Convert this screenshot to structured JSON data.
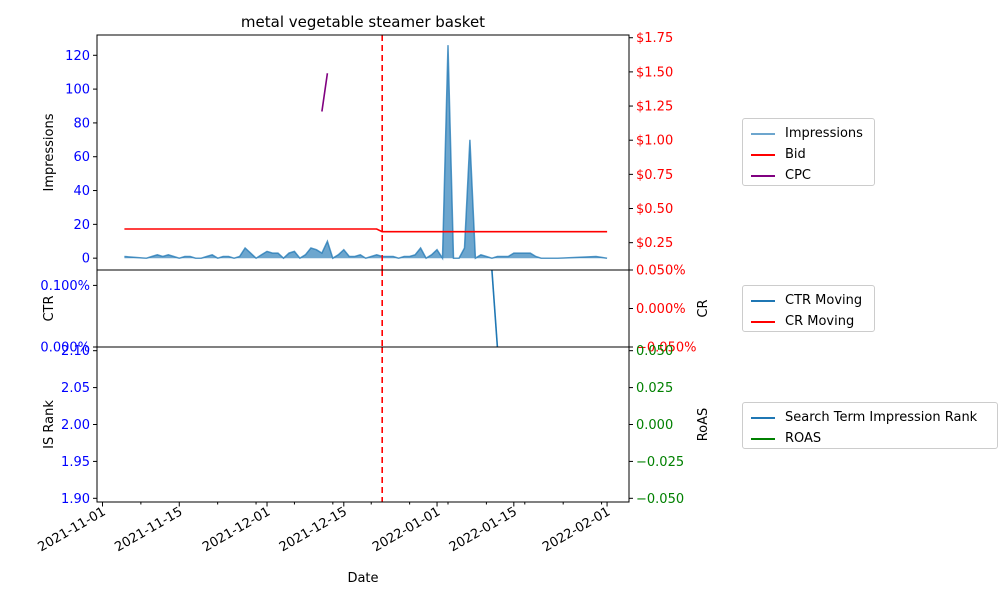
{
  "title": "metal vegetable steamer basket",
  "xlabel": "Date",
  "chart_data": [
    {
      "type": "area",
      "panel": "top",
      "ylabel": "Impressions",
      "ylim": [
        -7,
        132
      ],
      "yticks": [
        0,
        20,
        40,
        60,
        80,
        100,
        120
      ],
      "y2lim": [
        0.05,
        1.77
      ],
      "y2ticks": [
        0.25,
        0.5,
        0.75,
        1.0,
        1.25,
        1.5,
        1.75
      ],
      "y2tick_labels": [
        "$0.25",
        "$0.50",
        "$0.75",
        "$1.00",
        "$1.25",
        "$1.50",
        "$1.75"
      ],
      "series": [
        {
          "name": "Impressions",
          "axis": "left",
          "style": "area",
          "color": "#1f77b4",
          "x": [
            "2021-11-05",
            "2021-11-09",
            "2021-11-10",
            "2021-11-11",
            "2021-11-12",
            "2021-11-13",
            "2021-11-14",
            "2021-11-15",
            "2021-11-16",
            "2021-11-17",
            "2021-11-18",
            "2021-11-19",
            "2021-11-20",
            "2021-11-21",
            "2021-11-22",
            "2021-11-23",
            "2021-11-24",
            "2021-11-25",
            "2021-11-26",
            "2021-11-27",
            "2021-11-28",
            "2021-11-29",
            "2021-11-30",
            "2021-12-01",
            "2021-12-02",
            "2021-12-03",
            "2021-12-04",
            "2021-12-05",
            "2021-12-06",
            "2021-12-07",
            "2021-12-08",
            "2021-12-09",
            "2021-12-10",
            "2021-12-11",
            "2021-12-12",
            "2021-12-13",
            "2021-12-14",
            "2021-12-15",
            "2021-12-16",
            "2021-12-17",
            "2021-12-18",
            "2021-12-19",
            "2021-12-20",
            "2021-12-21",
            "2021-12-22",
            "2021-12-23",
            "2021-12-24",
            "2021-12-25",
            "2021-12-26",
            "2021-12-27",
            "2021-12-28",
            "2021-12-29",
            "2021-12-30",
            "2021-12-31",
            "2022-01-01",
            "2022-01-02",
            "2022-01-03",
            "2022-01-04",
            "2022-01-05",
            "2022-01-06",
            "2022-01-07",
            "2022-01-08",
            "2022-01-09",
            "2022-01-10",
            "2022-01-11",
            "2022-01-12",
            "2022-01-13",
            "2022-01-14",
            "2022-01-15",
            "2022-01-16",
            "2022-01-17",
            "2022-01-18",
            "2022-01-19",
            "2022-01-20",
            "2022-01-21",
            "2022-01-22",
            "2022-01-23",
            "2022-01-30",
            "2022-02-01"
          ],
          "values": [
            1,
            0,
            1,
            2,
            1,
            2,
            1,
            0,
            1,
            1,
            0,
            0,
            1,
            2,
            0,
            1,
            1,
            0,
            1,
            6,
            3,
            0,
            2,
            4,
            3,
            3,
            0,
            3,
            4,
            0,
            2,
            6,
            5,
            3,
            10,
            0,
            2,
            5,
            1,
            1,
            2,
            0,
            1,
            2,
            1,
            1,
            1,
            0,
            1,
            1,
            2,
            6,
            0,
            2,
            5,
            0,
            126,
            0,
            0,
            6,
            70,
            0,
            2,
            1,
            0,
            1,
            1,
            1,
            3,
            3,
            3,
            3,
            1,
            0,
            0,
            0,
            0,
            1,
            0
          ]
        },
        {
          "name": "Bid",
          "axis": "right",
          "style": "line",
          "color": "#ff0000",
          "x": [
            "2021-11-05",
            "2021-12-21",
            "2021-12-22",
            "2022-02-01"
          ],
          "values": [
            0.35,
            0.35,
            0.33,
            0.33
          ]
        },
        {
          "name": "CPC",
          "axis": "right",
          "style": "line",
          "color": "#800080",
          "x": [
            "2021-12-11",
            "2021-12-12"
          ],
          "values": [
            1.21,
            1.49
          ]
        }
      ],
      "vline": {
        "x": "2021-12-22",
        "color": "#ff0000",
        "style": "dashed"
      }
    },
    {
      "type": "line",
      "panel": "middle",
      "ylabel": "CTR",
      "y2label": "CR",
      "ylim": [
        0.0,
        0.00125
      ],
      "yticks": [
        0.0,
        0.001
      ],
      "ytick_labels": [
        "0.000%",
        "0.100%"
      ],
      "y2lim": [
        -0.0005,
        0.0005
      ],
      "y2ticks": [
        -0.0005,
        0.0,
        0.0005
      ],
      "y2tick_labels": [
        "−0.050%",
        "0.000%",
        "0.050%"
      ],
      "series": [
        {
          "name": "CTR Moving",
          "axis": "left",
          "color": "#1f77b4",
          "x": [
            "2022-01-11",
            "2022-01-12"
          ],
          "values": [
            0.00125,
            0.0
          ]
        },
        {
          "name": "CR Moving",
          "axis": "right",
          "color": "#ff0000",
          "x": [],
          "values": []
        }
      ],
      "vline": {
        "x": "2021-12-22",
        "color": "#ff0000",
        "style": "dashed"
      }
    },
    {
      "type": "line",
      "panel": "bottom",
      "ylabel": "IS Rank",
      "y2label": "RoAS",
      "ylim": [
        1.895,
        2.105
      ],
      "yticks": [
        1.9,
        1.95,
        2.0,
        2.05,
        2.1
      ],
      "ytick_labels": [
        "1.90",
        "1.95",
        "2.00",
        "2.05",
        "2.10"
      ],
      "y2lim": [
        -0.0525,
        0.0525
      ],
      "y2ticks": [
        -0.05,
        -0.025,
        0.0,
        0.025,
        0.05
      ],
      "y2tick_labels": [
        "−0.050",
        "−0.025",
        "0.000",
        "0.025",
        "0.050"
      ],
      "series": [
        {
          "name": "Search Term Impression Rank",
          "axis": "left",
          "color": "#1f77b4",
          "x": [],
          "values": []
        },
        {
          "name": "ROAS",
          "axis": "right",
          "color": "#008000",
          "x": [],
          "values": []
        }
      ],
      "vline": {
        "x": "2021-12-22",
        "color": "#ff0000",
        "style": "dashed"
      }
    }
  ],
  "xaxis": {
    "xlim": [
      "2021-10-31",
      "2022-02-05"
    ],
    "ticks": [
      "2021-11-01",
      "2021-11-15",
      "2021-12-01",
      "2021-12-15",
      "2022-01-01",
      "2022-01-15",
      "2022-02-01"
    ],
    "minor_ticks": [
      "2021-11-08",
      "2021-11-22",
      "2021-11-29",
      "2021-12-06",
      "2021-12-13",
      "2021-12-20",
      "2021-12-27",
      "2022-01-03",
      "2022-01-10",
      "2022-01-17",
      "2022-01-24",
      "2022-01-31"
    ]
  },
  "legends": [
    {
      "items": [
        "Impressions",
        "Bid",
        "CPC"
      ],
      "colors": [
        "#1f77b4",
        "#ff0000",
        "#800080"
      ]
    },
    {
      "items": [
        "CTR Moving",
        "CR Moving"
      ],
      "colors": [
        "#1f77b4",
        "#ff0000"
      ]
    },
    {
      "items": [
        "Search Term Impression Rank",
        "ROAS"
      ],
      "colors": [
        "#1f77b4",
        "#008000"
      ]
    }
  ]
}
